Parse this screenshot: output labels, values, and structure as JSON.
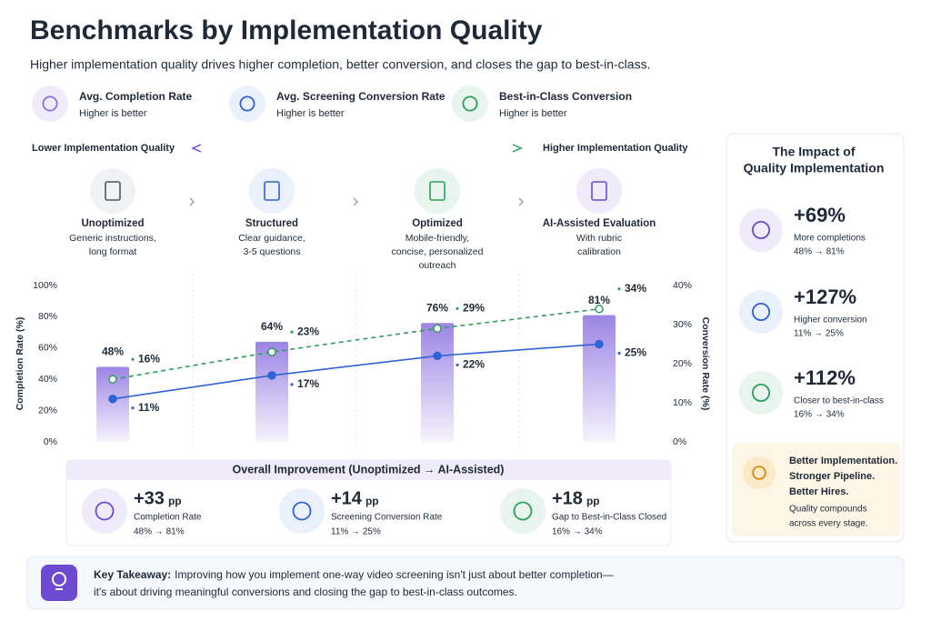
{
  "header": {
    "title": "Benchmarks by Implementation Quality",
    "subtitle": "Higher implementation quality drives higher completion, better conversion, and closes the gap to best-in-class."
  },
  "legend_note": "Higher is better",
  "quality_scale": {
    "low": "Lower Implementation Quality",
    "high": "Higher Implementation Quality"
  },
  "stage_descriptions": [
    [
      "Generic instructions,",
      "long format"
    ],
    [
      "Clear guidance,",
      "3-5 questions"
    ],
    [
      "Mobile-friendly,",
      "concise, personalized",
      "outreach"
    ],
    [
      "With rubric",
      "calibration"
    ]
  ],
  "chart_data": {
    "type": "bar",
    "categories": [
      "Unoptimized",
      "Structured",
      "Optimized",
      "AI-Assisted Evaluation"
    ],
    "series": [
      {
        "name": "Avg. Completion Rate",
        "type": "bar",
        "color": "#8b6fe0",
        "values": [
          48,
          64,
          76,
          81
        ],
        "value_labels": [
          "48%",
          "64%",
          "76%",
          "81%"
        ]
      },
      {
        "name": "Avg. Screening Conversion Rate",
        "type": "line",
        "axis": "y2",
        "color": "#2f62d6",
        "values": [
          11,
          17,
          22,
          25
        ],
        "value_labels": [
          "11%",
          "17%",
          "22%",
          "25%"
        ]
      },
      {
        "name": "Best-in-Class Conversion",
        "type": "line",
        "dashed": true,
        "axis": "y2",
        "color": "#2e9e5b",
        "values": [
          16,
          23,
          29,
          34
        ],
        "value_labels": [
          "16%",
          "23%",
          "29%",
          "34%"
        ]
      }
    ],
    "ylabel": "Completion Rate (%)",
    "y2label": "Conversion Rate (%)",
    "ylim": [
      0,
      100
    ],
    "yticks": [
      {
        "value": 0,
        "label": "0%"
      },
      {
        "value": 20,
        "label": "20%"
      },
      {
        "value": 40,
        "label": "40%"
      },
      {
        "value": 60,
        "label": "60%"
      },
      {
        "value": 80,
        "label": "80%"
      },
      {
        "value": 100,
        "label": "100%"
      }
    ],
    "y2lim": [
      0,
      40
    ],
    "y2ticks": [
      {
        "value": 0,
        "label": "0%"
      },
      {
        "value": 10,
        "label": "10%"
      },
      {
        "value": 20,
        "label": "20%"
      },
      {
        "value": 30,
        "label": "30%"
      },
      {
        "value": 40,
        "label": "40%"
      }
    ]
  },
  "overall_improvement": {
    "title": "Overall Improvement (Unoptimized → AI-Assisted)",
    "items": [
      {
        "value": "+33",
        "unit": "pp",
        "label": "Completion Rate",
        "change": "48% → 81%"
      },
      {
        "value": "+14",
        "unit": "pp",
        "label": "Screening Conversion Rate",
        "change": "11% → 25%"
      },
      {
        "value": "+18",
        "unit": "pp",
        "label": "Gap to Best-in-Class Closed",
        "change": "16% → 34%"
      }
    ]
  },
  "impact": {
    "title": [
      "The Impact of",
      "Quality Implementation"
    ],
    "items": [
      {
        "value": "+69%",
        "label": "More completions",
        "change": "48% → 81%"
      },
      {
        "value": "+127%",
        "label": "Higher conversion",
        "change": "11% → 25%"
      },
      {
        "value": "+112%",
        "label": "Closer to best-in-class",
        "change": "16% → 34%"
      }
    ],
    "callout": {
      "headline": [
        "Better Implementation.",
        "Stronger Pipeline.",
        "Better Hires."
      ],
      "note": [
        "Quality compounds",
        "across every stage."
      ]
    }
  },
  "takeaway": {
    "label": "Key Takeaway:",
    "text": [
      "Improving how you implement one-way video screening isn't just about better completion—",
      "it's about driving meaningful conversions and closing the gap to best-in-class outcomes."
    ]
  }
}
